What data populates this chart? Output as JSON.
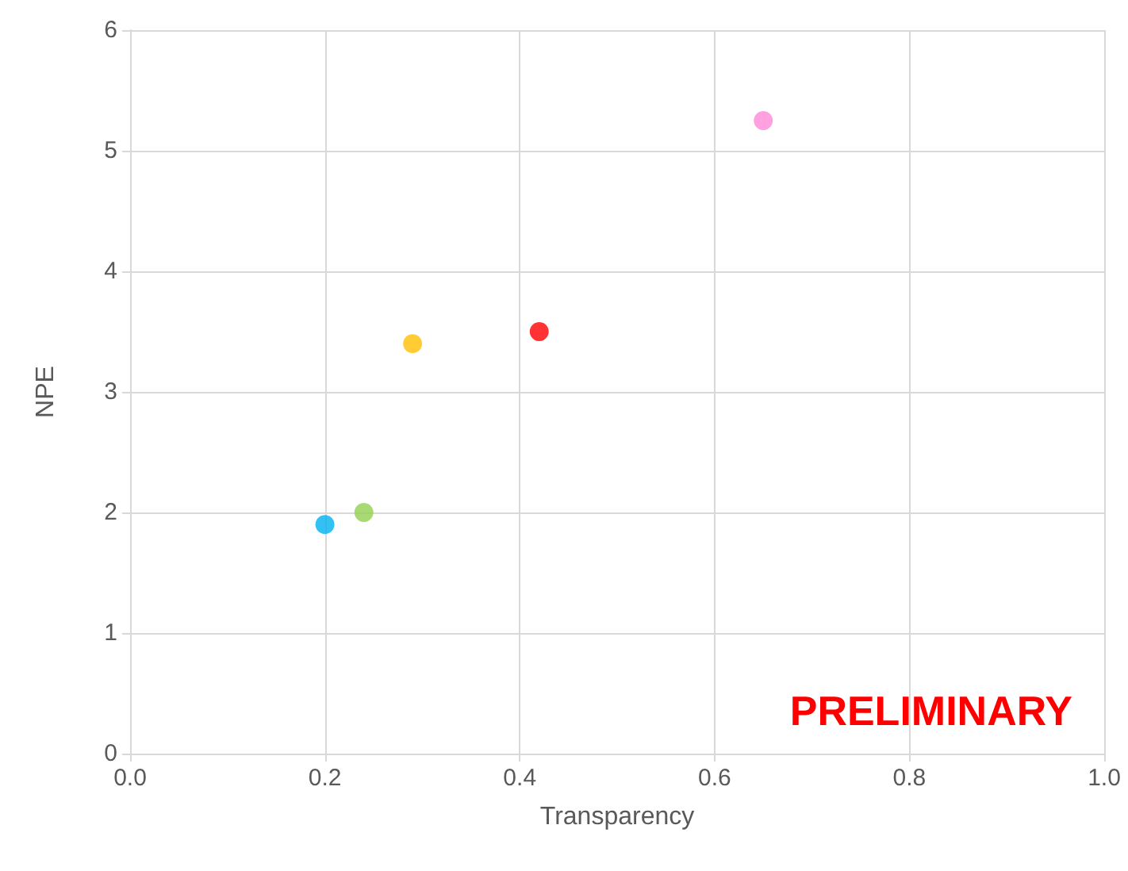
{
  "chart_data": {
    "type": "scatter",
    "xlabel": "Transparency",
    "ylabel": "NPE",
    "x": [
      0.2,
      0.24,
      0.29,
      0.42,
      0.65
    ],
    "values": [
      1.9,
      2.0,
      3.4,
      3.5,
      5.25
    ],
    "colors": [
      "#00b0f0",
      "#92d050",
      "#ffc000",
      "#ff0000",
      "#ff8ad8"
    ],
    "xlim": [
      0,
      1
    ],
    "xticks": [
      {
        "value": 0,
        "label": "0.0"
      },
      {
        "value": 0.2,
        "label": "0.2"
      },
      {
        "value": 0.4,
        "label": "0.4"
      },
      {
        "value": 0.6,
        "label": "0.6"
      },
      {
        "value": 0.8,
        "label": "0.8"
      },
      {
        "value": 1,
        "label": "1.0"
      }
    ],
    "ylim": [
      0,
      6
    ],
    "yticks": [
      0,
      1,
      2,
      3,
      4,
      5,
      6
    ],
    "grid": true,
    "marker": "circle",
    "annotations": [
      "PRELIMINARY"
    ]
  }
}
